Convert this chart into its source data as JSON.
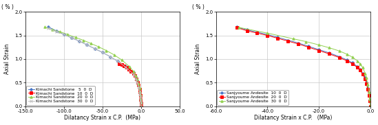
{
  "left": {
    "xlabel": "Dilatancy Strain x C.P.  (MPa)",
    "ylabel": "Axial Strain",
    "ylabel2": "( % )",
    "xlim": [
      -150,
      50
    ],
    "ylim": [
      0.0,
      2.0
    ],
    "xticks": [
      -150.0,
      -100.0,
      -50.0,
      0.0,
      50.0
    ],
    "yticks": [
      0.0,
      0.5,
      1.0,
      1.5,
      2.0
    ],
    "series": [
      {
        "label": "Kimachi Sandstone   5  0  D",
        "color": "#4472C4",
        "marker": "P",
        "x": [
          -120,
          -110,
          -100,
          -90,
          -80,
          -70,
          -60,
          -50,
          -40,
          -30,
          -20,
          -10,
          -7,
          -5,
          -3,
          -2,
          -1.5,
          -1,
          -0.5,
          -0.2,
          0
        ],
        "y": [
          1.68,
          1.6,
          1.52,
          1.45,
          1.38,
          1.3,
          1.22,
          1.14,
          1.05,
          0.95,
          0.85,
          0.72,
          0.62,
          0.55,
          0.44,
          0.35,
          0.28,
          0.22,
          0.14,
          0.07,
          0.0
        ]
      },
      {
        "label": "Kimachi Sandstone  10  0  D",
        "color": "#FF0000",
        "marker": "s",
        "x": [
          -28,
          -25,
          -22,
          -19,
          -16,
          -13,
          -10,
          -8,
          -6,
          -4,
          -3,
          -2,
          -1.5,
          -1,
          -0.5,
          -0.2,
          0
        ],
        "y": [
          0.9,
          0.88,
          0.85,
          0.82,
          0.78,
          0.74,
          0.7,
          0.65,
          0.58,
          0.5,
          0.44,
          0.36,
          0.3,
          0.22,
          0.14,
          0.07,
          0.0
        ]
      },
      {
        "label": "Kimachi Sandstone  20  0  D",
        "color": "#92D050",
        "marker": "^",
        "x": [
          -125,
          -115,
          -105,
          -95,
          -85,
          -75,
          -65,
          -55,
          -45,
          -35,
          -25,
          -15,
          -10,
          -7,
          -5,
          -3,
          -2,
          -1.5,
          -1,
          -0.5,
          -0.2,
          0
        ],
        "y": [
          1.68,
          1.62,
          1.58,
          1.52,
          1.46,
          1.4,
          1.33,
          1.26,
          1.18,
          1.09,
          0.98,
          0.84,
          0.74,
          0.65,
          0.57,
          0.47,
          0.38,
          0.32,
          0.24,
          0.16,
          0.08,
          0.0
        ]
      },
      {
        "label": "Kimachi Sandstone  30  0  D",
        "color": "#C0C0C0",
        "marker": "x",
        "x": [
          -120,
          -110,
          -100,
          -90,
          -80,
          -70,
          -60,
          -50,
          -40,
          -30,
          -20,
          -10,
          -7,
          -5,
          -3,
          -2,
          -1.5,
          -1,
          -0.5,
          -0.2,
          0
        ],
        "y": [
          1.65,
          1.58,
          1.52,
          1.45,
          1.38,
          1.3,
          1.22,
          1.14,
          1.05,
          0.95,
          0.83,
          0.68,
          0.58,
          0.5,
          0.4,
          0.32,
          0.26,
          0.2,
          0.12,
          0.06,
          0.0
        ]
      }
    ]
  },
  "right": {
    "xlabel": "Dilatancy Strain x C.P.   (MPa)",
    "ylabel": "Axial Strain",
    "ylabel2": "( % )",
    "xlim": [
      -60,
      0
    ],
    "ylim": [
      0.0,
      2.0
    ],
    "xticks": [
      -60.0,
      -40.0,
      -20.0,
      0.0
    ],
    "yticks": [
      0.0,
      0.5,
      1.0,
      1.5,
      2.0
    ],
    "series": [
      {
        "label": "Sanjyoume Andesite  10  0  D",
        "color": "#4472C4",
        "marker": "P",
        "x": [
          -52,
          -48,
          -44,
          -40,
          -36,
          -32,
          -28,
          -24,
          -20,
          -16,
          -12,
          -9,
          -7,
          -5,
          -4,
          -3,
          -2,
          -1.5,
          -1,
          -0.5,
          -0.2,
          0
        ],
        "y": [
          1.68,
          1.62,
          1.57,
          1.52,
          1.46,
          1.4,
          1.34,
          1.27,
          1.2,
          1.13,
          1.05,
          0.98,
          0.92,
          0.84,
          0.78,
          0.7,
          0.6,
          0.5,
          0.38,
          0.24,
          0.12,
          0.0
        ]
      },
      {
        "label": "Sanjyoume Andesite  20  0  D",
        "color": "#FF0000",
        "marker": "s",
        "x": [
          -52,
          -48,
          -44,
          -40,
          -36,
          -32,
          -28,
          -24,
          -20,
          -16,
          -12,
          -9,
          -7,
          -5,
          -4,
          -3,
          -2,
          -1.5,
          -1,
          -0.5,
          -0.2,
          0
        ],
        "y": [
          1.67,
          1.6,
          1.55,
          1.5,
          1.44,
          1.38,
          1.32,
          1.25,
          1.18,
          1.11,
          1.03,
          0.96,
          0.9,
          0.82,
          0.76,
          0.68,
          0.58,
          0.48,
          0.36,
          0.22,
          0.11,
          0.0
        ]
      },
      {
        "label": "Sanjyoume Andesite  30  0  D",
        "color": "#92D050",
        "marker": "^",
        "x": [
          -51,
          -40,
          -30,
          -25,
          -20,
          -16,
          -12,
          -9,
          -7,
          -5,
          -4,
          -3,
          -2,
          -1.5,
          -1,
          -0.5,
          -0.2,
          0
        ],
        "y": [
          1.67,
          1.55,
          1.43,
          1.37,
          1.3,
          1.24,
          1.17,
          1.1,
          1.04,
          0.96,
          0.9,
          0.82,
          0.7,
          0.6,
          0.46,
          0.3,
          0.15,
          0.0
        ]
      }
    ]
  },
  "bg_color": "#FFFFFF",
  "grid_color": "#C8C8C8",
  "font_size": 5.5,
  "legend_font_size": 4.2,
  "tick_font_size": 5.0
}
